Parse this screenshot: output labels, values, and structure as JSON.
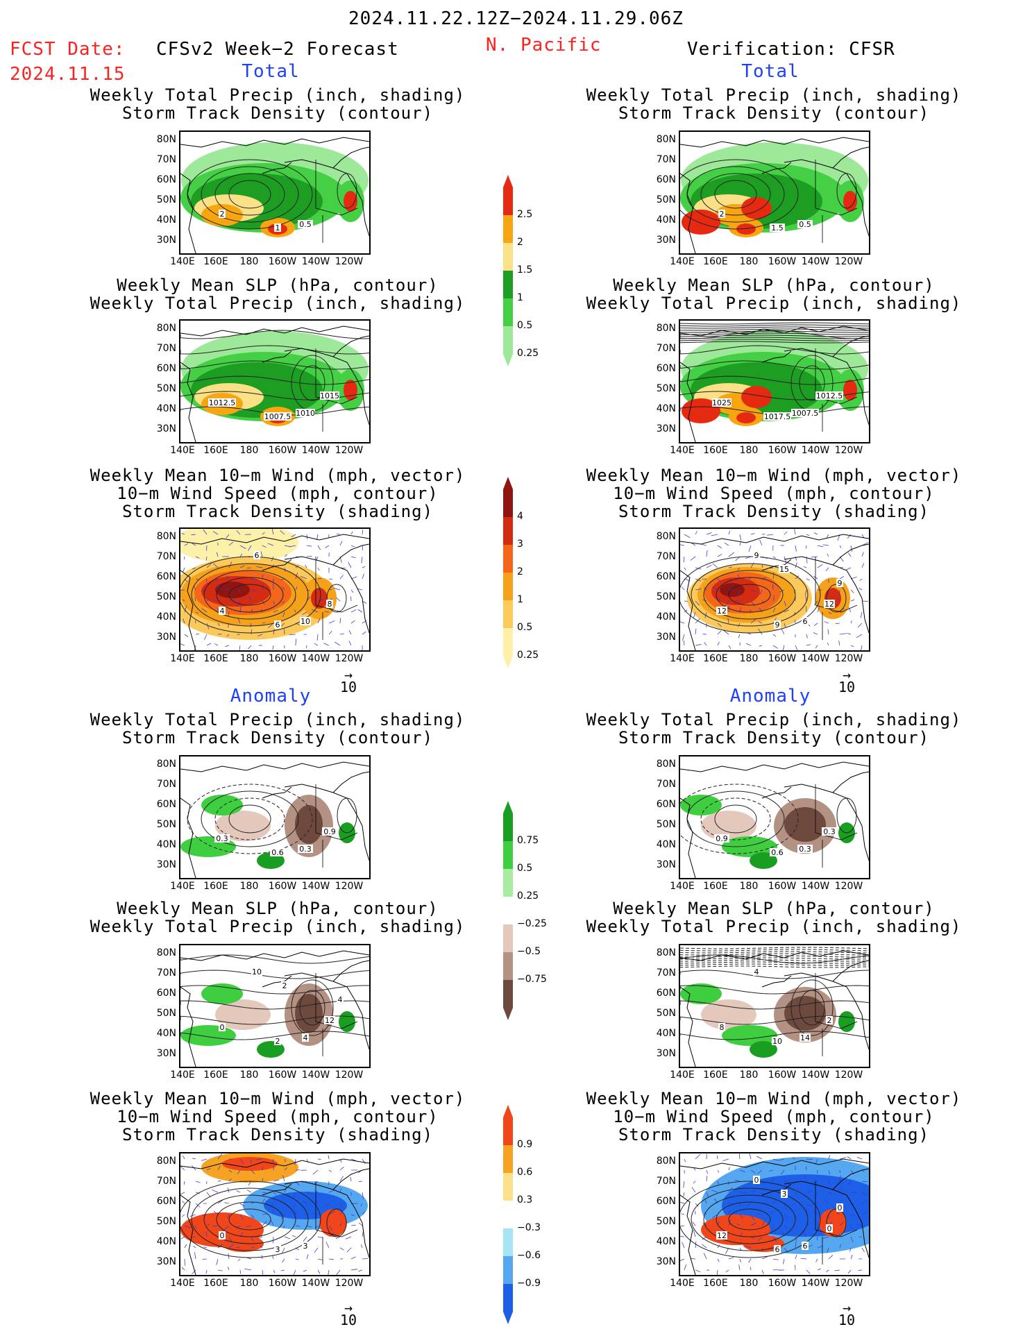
{
  "header": {
    "period": "2024.11.22.12Z−2024.11.29.06Z",
    "fcst_label": "FCST Date:",
    "fcst_date": "2024.11.15",
    "model": "CFSv2 Week−2 Forecast",
    "region": "N. Pacific",
    "verification": "Verification: CFSR"
  },
  "sections": {
    "total": "Total",
    "anomaly": "Anomaly"
  },
  "axes": {
    "lat": [
      "80N",
      "70N",
      "60N",
      "50N",
      "40N",
      "30N"
    ],
    "lon": [
      "140E",
      "160E",
      "180",
      "160W",
      "140W",
      "120W"
    ]
  },
  "titles": {
    "precip_storm": "Weekly Total Precip (inch, shading)\nStorm Track Density (contour)",
    "slp_precip": "Weekly Mean SLP (hPa, contour)\nWeekly Total Precip (inch, shading)",
    "wind_storm": "Weekly Mean 10−m Wind (mph, vector)\n10−m Wind Speed (mph, contour)\nStorm Track Density (shading)"
  },
  "vector_ref": "10",
  "colorbars": {
    "precip_total": {
      "labels": [
        "2.5",
        "2",
        "1.5",
        "1",
        "0.5",
        "0.25"
      ],
      "colors": [
        "#e62a12",
        "#f7a511",
        "#fae086",
        "#1d9e22",
        "#44cf44",
        "#9ee89a"
      ]
    },
    "storm_total": {
      "labels": [
        "4",
        "3",
        "2",
        "1",
        "0.5",
        "0.25"
      ],
      "colors": [
        "#8e1512",
        "#d42c13",
        "#f4661a",
        "#f5a21a",
        "#fbca5a",
        "#fdf0a8"
      ]
    },
    "precip_anom": {
      "labels": [
        "0.75",
        "0.5",
        "0.25",
        "−0.25",
        "−0.5",
        "−0.75"
      ],
      "colors": [
        "#1a9e22",
        "#3fce3f",
        "#a8eca2",
        "#ffffff",
        "#e5c8bc",
        "#b39183",
        "#6e4a3e"
      ]
    },
    "storm_anom": {
      "labels": [
        "0.9",
        "0.6",
        "0.3",
        "−0.3",
        "−0.6",
        "−0.9"
      ],
      "colors": [
        "#f0461a",
        "#f6a323",
        "#fde08a",
        "#ffffff",
        "#a7e4f6",
        "#55a8ef",
        "#1d5fe6"
      ]
    }
  },
  "maps": [
    {
      "id": "fc-precip-total",
      "contour_labels": [
        "2",
        "1",
        "0.5"
      ]
    },
    {
      "id": "ver-precip-total",
      "contour_labels": [
        "2",
        "1.5",
        "0.5"
      ]
    },
    {
      "id": "fc-slp-total",
      "contour_labels": [
        "1012.5",
        "1007.5",
        "1010",
        "1015"
      ]
    },
    {
      "id": "ver-slp-total",
      "contour_labels": [
        "1025",
        "1017.5",
        "1007.5",
        "1012.5"
      ]
    },
    {
      "id": "fc-wind-total",
      "contour_labels": [
        "4",
        "6",
        "10",
        "8",
        "6"
      ]
    },
    {
      "id": "ver-wind-total",
      "contour_labels": [
        "12",
        "9",
        "6",
        "12",
        "9",
        "15",
        "9"
      ]
    },
    {
      "id": "fc-precip-anom",
      "contour_labels": [
        "0.3",
        "0.6",
        "0.3",
        "0.9"
      ]
    },
    {
      "id": "ver-precip-anom",
      "contour_labels": [
        "0.9",
        "0.6",
        "0.3",
        "0.3"
      ]
    },
    {
      "id": "fc-slp-anom",
      "contour_labels": [
        "0",
        "2",
        "4",
        "12",
        "10",
        "2",
        "4"
      ]
    },
    {
      "id": "ver-slp-anom",
      "contour_labels": [
        "8",
        "10",
        "14",
        "2",
        "4"
      ]
    },
    {
      "id": "fc-wind-anom",
      "contour_labels": [
        "0",
        "3",
        "3"
      ]
    },
    {
      "id": "ver-wind-anom",
      "contour_labels": [
        "12",
        "6",
        "6",
        "0",
        "0",
        "3",
        "0"
      ]
    }
  ]
}
